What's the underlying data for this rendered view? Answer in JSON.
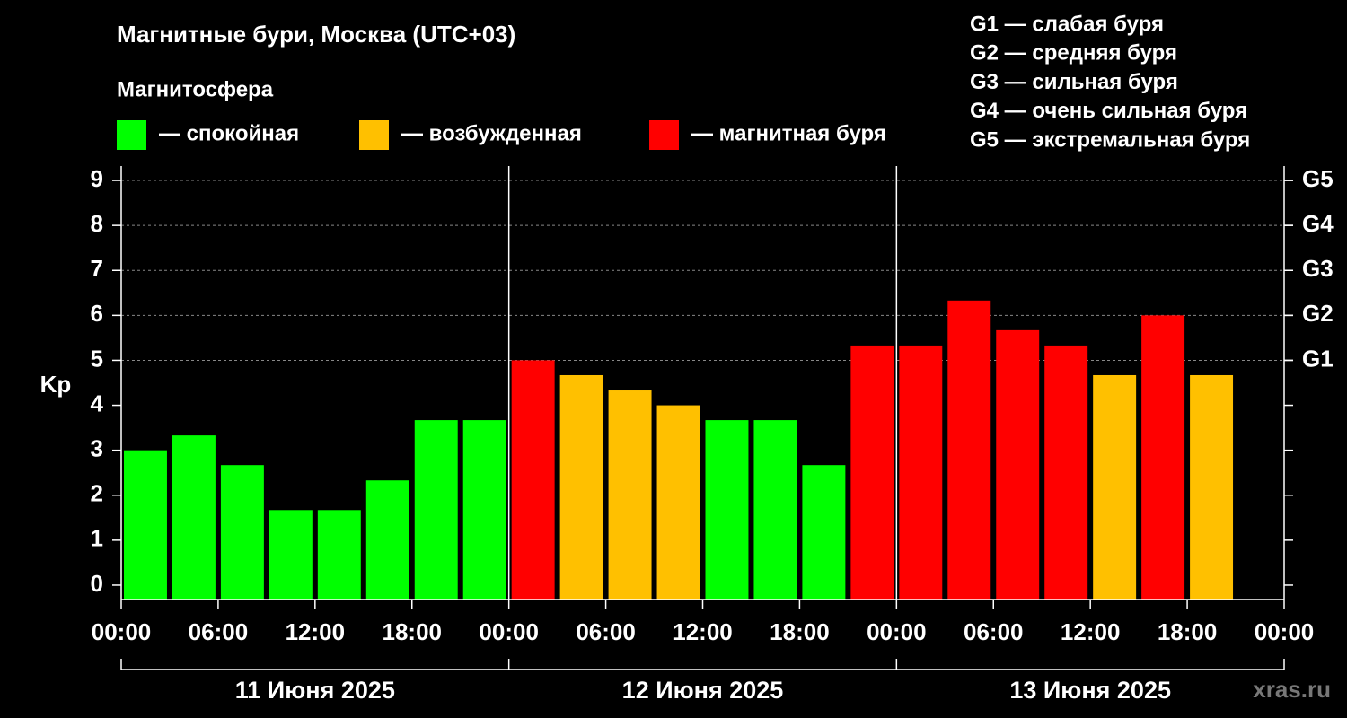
{
  "chart_data": {
    "type": "bar",
    "title": "Магнитные бури, Москва (UTC+03)",
    "legend_title": "Магнитосфера",
    "legend": [
      {
        "name": "— спокойная",
        "color": "#00ff00"
      },
      {
        "name": "— возбужденная",
        "color": "#ffc000"
      },
      {
        "name": "— магнитная буря",
        "color": "#ff0000"
      }
    ],
    "g_scale": [
      "G1 — слабая буря",
      "G2 — средняя буря",
      "G3 — сильная буря",
      "G4 — очень сильная буря",
      "G5 — экстремальная буря"
    ],
    "y_label": "Kp",
    "x": [
      0,
      3,
      6,
      9,
      12,
      15,
      18,
      21,
      24,
      27,
      30,
      33,
      36,
      39,
      42,
      45,
      48,
      51,
      54,
      57,
      60,
      63,
      66
    ],
    "values": [
      3.0,
      3.33,
      2.67,
      1.67,
      1.67,
      2.33,
      3.67,
      3.67,
      5.0,
      4.67,
      4.33,
      4.0,
      3.67,
      3.67,
      2.67,
      5.33,
      5.33,
      6.33,
      5.67,
      5.33,
      4.67,
      6.0,
      4.67
    ],
    "colors": [
      "#00ff00",
      "#00ff00",
      "#00ff00",
      "#00ff00",
      "#00ff00",
      "#00ff00",
      "#00ff00",
      "#00ff00",
      "#ff0000",
      "#ffc000",
      "#ffc000",
      "#ffc000",
      "#00ff00",
      "#00ff00",
      "#00ff00",
      "#ff0000",
      "#ff0000",
      "#ff0000",
      "#ff0000",
      "#ff0000",
      "#ffc000",
      "#ff0000",
      "#ffc000"
    ],
    "xlim": [
      0,
      72
    ],
    "xticks": [
      {
        "value": 0,
        "label": "00:00"
      },
      {
        "value": 6,
        "label": "06:00"
      },
      {
        "value": 12,
        "label": "12:00"
      },
      {
        "value": 18,
        "label": "18:00"
      },
      {
        "value": 24,
        "label": "00:00"
      },
      {
        "value": 30,
        "label": "06:00"
      },
      {
        "value": 36,
        "label": "12:00"
      },
      {
        "value": 42,
        "label": "18:00"
      },
      {
        "value": 48,
        "label": "00:00"
      },
      {
        "value": 54,
        "label": "06:00"
      },
      {
        "value": 60,
        "label": "12:00"
      },
      {
        "value": 66,
        "label": "18:00"
      },
      {
        "value": 72,
        "label": "00:00"
      }
    ],
    "days": [
      "11 Июня 2025",
      "12 Июня 2025",
      "13 Июня 2025"
    ],
    "ylim": [
      -0.32,
      9.32
    ],
    "yticks": [
      0,
      1,
      2,
      3,
      4,
      5,
      6,
      7,
      8,
      9
    ],
    "y2lim": [
      -0.32,
      9.32
    ],
    "y2ticks": [
      {
        "value": 5,
        "label": "G1"
      },
      {
        "value": 6,
        "label": "G2"
      },
      {
        "value": 7,
        "label": "G3"
      },
      {
        "value": 8,
        "label": "G4"
      },
      {
        "value": 9,
        "label": "G5"
      }
    ],
    "watermark": "xras.ru"
  }
}
